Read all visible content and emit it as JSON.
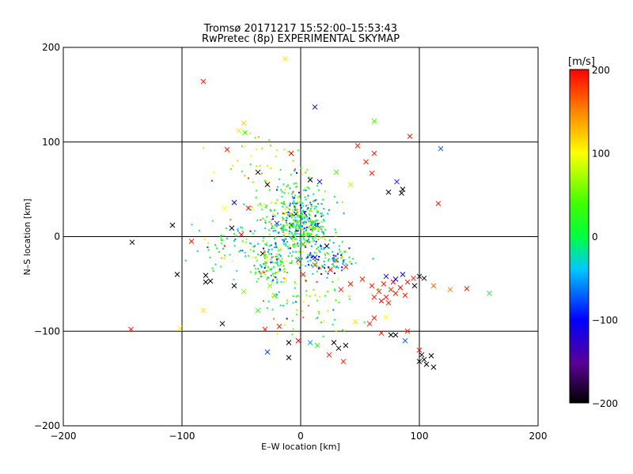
{
  "chart_data": {
    "type": "scatter",
    "title": "Tromsø 20171217 15:52:00–15:53:43",
    "subtitle": "RwPretec (8p) EXPERIMENTAL SKYMAP",
    "xlabel": "E–W location [km]",
    "ylabel": "N–S location [km]",
    "xlim": [
      -200,
      200
    ],
    "ylim": [
      -200,
      200
    ],
    "x_ticks": [
      "−200",
      "−100",
      "0",
      "100",
      "200"
    ],
    "y_ticks": [
      "200",
      "100",
      "0",
      "−100",
      "−200"
    ],
    "x_tick_values": [
      -200,
      -100,
      0,
      100,
      200
    ],
    "y_tick_values": [
      200,
      100,
      0,
      -100,
      -200
    ],
    "grid": true,
    "colorbar": {
      "label": "[m/s]",
      "range": [
        -200,
        200
      ],
      "tick_labels": [
        "200",
        "100",
        "0",
        "−100",
        "−200"
      ],
      "tick_values": [
        200,
        100,
        0,
        -100,
        -200
      ],
      "colormap": "rainbow (black → purple → blue → cyan → green → yellow → red)"
    },
    "marker_types": [
      "x",
      "dot"
    ],
    "dense_cluster": {
      "description_center_km": [
        0,
        10
      ],
      "note": "several hundred small dots concentrated near the origin"
    },
    "points": [
      {
        "x": -82,
        "y": 164,
        "v": 190,
        "m": "x"
      },
      {
        "x": -13,
        "y": 188,
        "v": 110,
        "m": "x"
      },
      {
        "x": 12,
        "y": 137,
        "v": -120,
        "m": "x"
      },
      {
        "x": 62,
        "y": 122,
        "v": 40,
        "m": "x"
      },
      {
        "x": 92,
        "y": 106,
        "v": 200,
        "m": "x"
      },
      {
        "x": 118,
        "y": 93,
        "v": -70,
        "m": "x"
      },
      {
        "x": 116,
        "y": 35,
        "v": 190,
        "m": "x"
      },
      {
        "x": -62,
        "y": 92,
        "v": 200,
        "m": "x"
      },
      {
        "x": -52,
        "y": 112,
        "v": 110,
        "m": "x"
      },
      {
        "x": -48,
        "y": 120,
        "v": 120,
        "m": "x"
      },
      {
        "x": -47,
        "y": 110,
        "v": 40,
        "m": "x"
      },
      {
        "x": -8,
        "y": 88,
        "v": 200,
        "m": "x"
      },
      {
        "x": 48,
        "y": 96,
        "v": 190,
        "m": "x"
      },
      {
        "x": 62,
        "y": 88,
        "v": 190,
        "m": "x"
      },
      {
        "x": 55,
        "y": 79,
        "v": 190,
        "m": "x"
      },
      {
        "x": 86,
        "y": 50,
        "v": -200,
        "m": "x"
      },
      {
        "x": 85,
        "y": 46,
        "v": -200,
        "m": "x"
      },
      {
        "x": 81,
        "y": 58,
        "v": -90,
        "m": "x"
      },
      {
        "x": -143,
        "y": -98,
        "v": 190,
        "m": "x"
      },
      {
        "x": -142,
        "y": -6,
        "v": -200,
        "m": "x"
      },
      {
        "x": -108,
        "y": 12,
        "v": -200,
        "m": "x"
      },
      {
        "x": -92,
        "y": -5,
        "v": 190,
        "m": "x"
      },
      {
        "x": -80,
        "y": -48,
        "v": -200,
        "m": "x"
      },
      {
        "x": -82,
        "y": -78,
        "v": 110,
        "m": "x"
      },
      {
        "x": -66,
        "y": -92,
        "v": -200,
        "m": "x"
      },
      {
        "x": -102,
        "y": -97,
        "v": 100,
        "m": "x"
      },
      {
        "x": -56,
        "y": -52,
        "v": -200,
        "m": "x"
      },
      {
        "x": -32,
        "y": -18,
        "v": -200,
        "m": "x"
      },
      {
        "x": -58,
        "y": 9,
        "v": -200,
        "m": "x"
      },
      {
        "x": -28,
        "y": 55,
        "v": -200,
        "m": "x"
      },
      {
        "x": -36,
        "y": 68,
        "v": -200,
        "m": "x"
      },
      {
        "x": 8,
        "y": 60,
        "v": -200,
        "m": "x"
      },
      {
        "x": 16,
        "y": 58,
        "v": -120,
        "m": "x"
      },
      {
        "x": 30,
        "y": 68,
        "v": 40,
        "m": "x"
      },
      {
        "x": 42,
        "y": 55,
        "v": 80,
        "m": "x"
      },
      {
        "x": 60,
        "y": 67,
        "v": 190,
        "m": "x"
      },
      {
        "x": 74,
        "y": 47,
        "v": -200,
        "m": "x"
      },
      {
        "x": 52,
        "y": -45,
        "v": 190,
        "m": "x"
      },
      {
        "x": 60,
        "y": -52,
        "v": 190,
        "m": "x"
      },
      {
        "x": 66,
        "y": -58,
        "v": 190,
        "m": "x"
      },
      {
        "x": 70,
        "y": -50,
        "v": 190,
        "m": "x"
      },
      {
        "x": 72,
        "y": -64,
        "v": 190,
        "m": "x"
      },
      {
        "x": 76,
        "y": -56,
        "v": 190,
        "m": "x"
      },
      {
        "x": 78,
        "y": -48,
        "v": 200,
        "m": "x"
      },
      {
        "x": 80,
        "y": -60,
        "v": 190,
        "m": "x"
      },
      {
        "x": 84,
        "y": -54,
        "v": 200,
        "m": "x"
      },
      {
        "x": 88,
        "y": -62,
        "v": 190,
        "m": "x"
      },
      {
        "x": 68,
        "y": -68,
        "v": 200,
        "m": "x"
      },
      {
        "x": 74,
        "y": -70,
        "v": 190,
        "m": "x"
      },
      {
        "x": 62,
        "y": -64,
        "v": 190,
        "m": "x"
      },
      {
        "x": 90,
        "y": -48,
        "v": 190,
        "m": "x"
      },
      {
        "x": 95,
        "y": -44,
        "v": 190,
        "m": "x"
      },
      {
        "x": 100,
        "y": -42,
        "v": -200,
        "m": "x"
      },
      {
        "x": 104,
        "y": -44,
        "v": -200,
        "m": "x"
      },
      {
        "x": 96,
        "y": -52,
        "v": -200,
        "m": "x"
      },
      {
        "x": 112,
        "y": -52,
        "v": 160,
        "m": "x"
      },
      {
        "x": 126,
        "y": -56,
        "v": 150,
        "m": "x"
      },
      {
        "x": 140,
        "y": -55,
        "v": 190,
        "m": "x"
      },
      {
        "x": 159,
        "y": -60,
        "v": 10,
        "m": "x"
      },
      {
        "x": 80,
        "y": -45,
        "v": -100,
        "m": "x"
      },
      {
        "x": 86,
        "y": -40,
        "v": -110,
        "m": "x"
      },
      {
        "x": 72,
        "y": -42,
        "v": -110,
        "m": "x"
      },
      {
        "x": 42,
        "y": -50,
        "v": 190,
        "m": "x"
      },
      {
        "x": 34,
        "y": -56,
        "v": 190,
        "m": "x"
      },
      {
        "x": 38,
        "y": -32,
        "v": 190,
        "m": "x"
      },
      {
        "x": 30,
        "y": -25,
        "v": 190,
        "m": "x"
      },
      {
        "x": 25,
        "y": -35,
        "v": 190,
        "m": "x"
      },
      {
        "x": 12,
        "y": -30,
        "v": 190,
        "m": "x"
      },
      {
        "x": 2,
        "y": -40,
        "v": 190,
        "m": "x"
      },
      {
        "x": -2,
        "y": -25,
        "v": 200,
        "m": "x"
      },
      {
        "x": 46,
        "y": -90,
        "v": 110,
        "m": "x"
      },
      {
        "x": 58,
        "y": -92,
        "v": 190,
        "m": "x"
      },
      {
        "x": 62,
        "y": -86,
        "v": 190,
        "m": "x"
      },
      {
        "x": 72,
        "y": -85,
        "v": 100,
        "m": "x"
      },
      {
        "x": 68,
        "y": -102,
        "v": 190,
        "m": "x"
      },
      {
        "x": 80,
        "y": -104,
        "v": -200,
        "m": "x"
      },
      {
        "x": 76,
        "y": -104,
        "v": -200,
        "m": "x"
      },
      {
        "x": 90,
        "y": -100,
        "v": 190,
        "m": "x"
      },
      {
        "x": 88,
        "y": -110,
        "v": -70,
        "m": "x"
      },
      {
        "x": 100,
        "y": -120,
        "v": 200,
        "m": "x"
      },
      {
        "x": 102,
        "y": -125,
        "v": -200,
        "m": "x"
      },
      {
        "x": 104,
        "y": -130,
        "v": -200,
        "m": "x"
      },
      {
        "x": 100,
        "y": -132,
        "v": -200,
        "m": "x"
      },
      {
        "x": 110,
        "y": -126,
        "v": -200,
        "m": "x"
      },
      {
        "x": 106,
        "y": -135,
        "v": -200,
        "m": "x"
      },
      {
        "x": 112,
        "y": -138,
        "v": -200,
        "m": "x"
      },
      {
        "x": 38,
        "y": -115,
        "v": -200,
        "m": "x"
      },
      {
        "x": 32,
        "y": -118,
        "v": -200,
        "m": "x"
      },
      {
        "x": 28,
        "y": -112,
        "v": -200,
        "m": "x"
      },
      {
        "x": 24,
        "y": -125,
        "v": 190,
        "m": "x"
      },
      {
        "x": 36,
        "y": -132,
        "v": 190,
        "m": "x"
      },
      {
        "x": 14,
        "y": -115,
        "v": 20,
        "m": "x"
      },
      {
        "x": 8,
        "y": -112,
        "v": -50,
        "m": "x"
      },
      {
        "x": -2,
        "y": -110,
        "v": 200,
        "m": "x"
      },
      {
        "x": -10,
        "y": -112,
        "v": -200,
        "m": "x"
      },
      {
        "x": -10,
        "y": -128,
        "v": -200,
        "m": "x"
      },
      {
        "x": -28,
        "y": -122,
        "v": -80,
        "m": "x"
      },
      {
        "x": -30,
        "y": -98,
        "v": 190,
        "m": "x"
      },
      {
        "x": -18,
        "y": -95,
        "v": 190,
        "m": "x"
      },
      {
        "x": -36,
        "y": -78,
        "v": 30,
        "m": "x"
      },
      {
        "x": -22,
        "y": -62,
        "v": 40,
        "m": "x"
      },
      {
        "x": -26,
        "y": -52,
        "v": 60,
        "m": "x"
      },
      {
        "x": 2,
        "y": -8,
        "v": 190,
        "m": "x"
      },
      {
        "x": 14,
        "y": 12,
        "v": -90,
        "m": "x"
      },
      {
        "x": 22,
        "y": -10,
        "v": -200,
        "m": "x"
      },
      {
        "x": 12,
        "y": -22,
        "v": -100,
        "m": "x"
      },
      {
        "x": -4,
        "y": 24,
        "v": -200,
        "m": "x"
      },
      {
        "x": -20,
        "y": 14,
        "v": -80,
        "m": "x"
      },
      {
        "x": -8,
        "y": 12,
        "v": -200,
        "m": "x"
      },
      {
        "x": -44,
        "y": 30,
        "v": 200,
        "m": "x"
      },
      {
        "x": -50,
        "y": 2,
        "v": 200,
        "m": "x"
      },
      {
        "x": -56,
        "y": 36,
        "v": -100,
        "m": "x"
      },
      {
        "x": -64,
        "y": 30,
        "v": 100,
        "m": "x"
      },
      {
        "x": -104,
        "y": -40,
        "v": -200,
        "m": "x"
      },
      {
        "x": -80,
        "y": -41,
        "v": -200,
        "m": "x"
      },
      {
        "x": -76,
        "y": -47,
        "v": -200,
        "m": "x"
      },
      {
        "x": -48,
        "y": -58,
        "v": 60,
        "m": "x"
      }
    ]
  },
  "colors": {
    "frame": "#000000",
    "background": "#ffffff"
  }
}
